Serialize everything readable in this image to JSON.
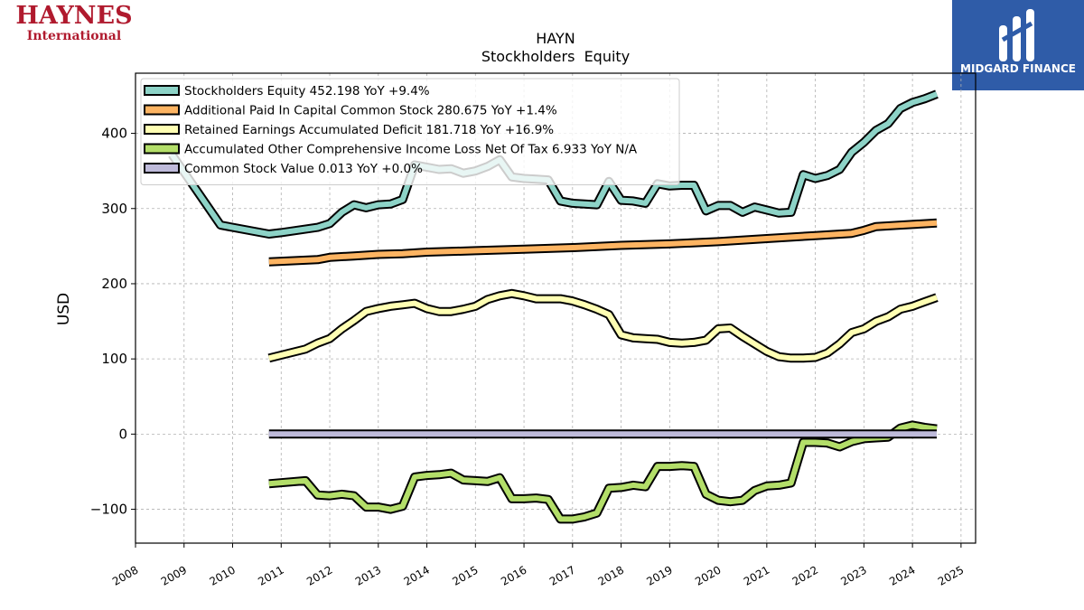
{
  "logos": {
    "left_name": "HAYNES",
    "left_sub": "International",
    "right_brand": "MIDGARD FINANCE"
  },
  "chart_data": {
    "type": "line",
    "title": "HAYN",
    "subtitle": "Stockholders  Equity",
    "ylabel": "USD",
    "xlabel": "",
    "xlim": [
      2008.0,
      2025.3
    ],
    "ylim": [
      -145,
      480
    ],
    "yticks": [
      -100,
      0,
      100,
      200,
      300,
      400
    ],
    "ytick_labels": [
      "−100",
      "0",
      "100",
      "200",
      "300",
      "400"
    ],
    "xticks": [
      2008,
      2009,
      2010,
      2011,
      2012,
      2013,
      2014,
      2015,
      2016,
      2017,
      2018,
      2019,
      2020,
      2021,
      2022,
      2023,
      2024,
      2025
    ],
    "grid": true,
    "legend_position": "top-left",
    "series": [
      {
        "name": "Stockholders Equity  452.198 YoY +9.4%",
        "color": "#8dd3c7",
        "points": [
          [
            2008.75,
            372
          ],
          [
            2009.75,
            278
          ],
          [
            2010.75,
            266
          ],
          [
            2011.0,
            268
          ],
          [
            2011.75,
            275
          ],
          [
            2012.0,
            280
          ],
          [
            2012.25,
            295
          ],
          [
            2012.5,
            305
          ],
          [
            2012.75,
            301
          ],
          [
            2013.0,
            305
          ],
          [
            2013.25,
            306
          ],
          [
            2013.5,
            312
          ],
          [
            2013.75,
            358
          ],
          [
            2014.0,
            355
          ],
          [
            2014.25,
            352
          ],
          [
            2014.5,
            353
          ],
          [
            2014.75,
            347
          ],
          [
            2015.0,
            350
          ],
          [
            2015.25,
            356
          ],
          [
            2015.5,
            365
          ],
          [
            2015.75,
            342
          ],
          [
            2016.0,
            340
          ],
          [
            2016.25,
            339
          ],
          [
            2016.5,
            338
          ],
          [
            2016.75,
            310
          ],
          [
            2017.0,
            307
          ],
          [
            2017.25,
            306
          ],
          [
            2017.5,
            305
          ],
          [
            2017.75,
            336
          ],
          [
            2018.0,
            311
          ],
          [
            2018.25,
            310
          ],
          [
            2018.5,
            307
          ],
          [
            2018.75,
            333
          ],
          [
            2019.0,
            330
          ],
          [
            2019.25,
            331
          ],
          [
            2019.5,
            331
          ],
          [
            2019.75,
            297
          ],
          [
            2020.0,
            304
          ],
          [
            2020.25,
            304
          ],
          [
            2020.5,
            295
          ],
          [
            2020.75,
            302
          ],
          [
            2021.0,
            298
          ],
          [
            2021.25,
            294
          ],
          [
            2021.5,
            295
          ],
          [
            2021.75,
            345
          ],
          [
            2022.0,
            340
          ],
          [
            2022.25,
            344
          ],
          [
            2022.5,
            352
          ],
          [
            2022.75,
            375
          ],
          [
            2023.0,
            388
          ],
          [
            2023.25,
            404
          ],
          [
            2023.5,
            413
          ],
          [
            2023.75,
            433
          ],
          [
            2024.0,
            441
          ],
          [
            2024.25,
            446
          ],
          [
            2024.5,
            452.198
          ]
        ]
      },
      {
        "name": "Additional Paid In Capital Common Stock  280.675 YoY +1.4%",
        "color": "#fdb462",
        "points": [
          [
            2010.75,
            229
          ],
          [
            2011.75,
            232
          ],
          [
            2012.0,
            235
          ],
          [
            2012.5,
            237
          ],
          [
            2013.0,
            239
          ],
          [
            2013.5,
            240
          ],
          [
            2014.0,
            242
          ],
          [
            2015.0,
            244
          ],
          [
            2016.0,
            246
          ],
          [
            2017.0,
            248
          ],
          [
            2018.0,
            251
          ],
          [
            2019.0,
            253
          ],
          [
            2020.0,
            256
          ],
          [
            2021.0,
            260
          ],
          [
            2022.0,
            264
          ],
          [
            2022.75,
            267
          ],
          [
            2023.0,
            271
          ],
          [
            2023.25,
            276
          ],
          [
            2023.75,
            278
          ],
          [
            2024.5,
            280.675
          ]
        ]
      },
      {
        "name": "Retained Earnings Accumulated Deficit  181.718 YoY +16.9%",
        "color": "#ffffb3",
        "points": [
          [
            2010.75,
            101
          ],
          [
            2011.5,
            113
          ],
          [
            2011.75,
            121
          ],
          [
            2012.0,
            127
          ],
          [
            2012.25,
            140
          ],
          [
            2012.5,
            151
          ],
          [
            2012.75,
            163
          ],
          [
            2013.0,
            167
          ],
          [
            2013.25,
            170
          ],
          [
            2013.5,
            172
          ],
          [
            2013.75,
            174
          ],
          [
            2014.0,
            167
          ],
          [
            2014.25,
            163
          ],
          [
            2014.5,
            163
          ],
          [
            2014.75,
            166
          ],
          [
            2015.0,
            170
          ],
          [
            2015.25,
            179
          ],
          [
            2015.5,
            184
          ],
          [
            2015.75,
            187
          ],
          [
            2016.0,
            184
          ],
          [
            2016.25,
            180
          ],
          [
            2016.5,
            180
          ],
          [
            2016.75,
            180
          ],
          [
            2017.0,
            177
          ],
          [
            2017.25,
            172
          ],
          [
            2017.5,
            166
          ],
          [
            2017.75,
            159
          ],
          [
            2018.0,
            132
          ],
          [
            2018.25,
            128
          ],
          [
            2018.5,
            127
          ],
          [
            2018.75,
            126
          ],
          [
            2019.0,
            122
          ],
          [
            2019.25,
            121
          ],
          [
            2019.5,
            122
          ],
          [
            2019.75,
            125
          ],
          [
            2020.0,
            140
          ],
          [
            2020.25,
            141
          ],
          [
            2020.5,
            130
          ],
          [
            2020.75,
            120
          ],
          [
            2021.0,
            110
          ],
          [
            2021.25,
            103
          ],
          [
            2021.5,
            101
          ],
          [
            2021.75,
            101
          ],
          [
            2022.0,
            102
          ],
          [
            2022.25,
            108
          ],
          [
            2022.5,
            120
          ],
          [
            2022.75,
            135
          ],
          [
            2023.0,
            140
          ],
          [
            2023.25,
            150
          ],
          [
            2023.5,
            156
          ],
          [
            2023.75,
            166
          ],
          [
            2024.0,
            170
          ],
          [
            2024.25,
            176
          ],
          [
            2024.5,
            181.718
          ]
        ]
      },
      {
        "name": "Accumulated Other Comprehensive Income Loss Net Of Tax  6.933 YoY N/A",
        "color": "#b3de69",
        "points": [
          [
            2010.75,
            -66
          ],
          [
            2011.5,
            -62
          ],
          [
            2011.75,
            -81
          ],
          [
            2012.0,
            -82
          ],
          [
            2012.25,
            -80
          ],
          [
            2012.5,
            -82
          ],
          [
            2012.75,
            -97
          ],
          [
            2013.0,
            -97
          ],
          [
            2013.25,
            -100
          ],
          [
            2013.5,
            -96
          ],
          [
            2013.75,
            -57
          ],
          [
            2014.0,
            -55
          ],
          [
            2014.25,
            -54
          ],
          [
            2014.5,
            -52
          ],
          [
            2014.75,
            -61
          ],
          [
            2015.0,
            -62
          ],
          [
            2015.25,
            -63
          ],
          [
            2015.5,
            -58
          ],
          [
            2015.75,
            -86
          ],
          [
            2016.0,
            -86
          ],
          [
            2016.25,
            -85
          ],
          [
            2016.5,
            -87
          ],
          [
            2016.75,
            -113
          ],
          [
            2017.0,
            -113
          ],
          [
            2017.25,
            -110
          ],
          [
            2017.5,
            -105
          ],
          [
            2017.75,
            -72
          ],
          [
            2018.0,
            -71
          ],
          [
            2018.25,
            -68
          ],
          [
            2018.5,
            -70
          ],
          [
            2018.75,
            -43
          ],
          [
            2019.0,
            -43
          ],
          [
            2019.25,
            -42
          ],
          [
            2019.5,
            -43
          ],
          [
            2019.75,
            -80
          ],
          [
            2020.0,
            -88
          ],
          [
            2020.25,
            -90
          ],
          [
            2020.5,
            -88
          ],
          [
            2020.75,
            -75
          ],
          [
            2021.0,
            -69
          ],
          [
            2021.25,
            -68
          ],
          [
            2021.5,
            -65
          ],
          [
            2021.75,
            -11
          ],
          [
            2022.0,
            -11
          ],
          [
            2022.25,
            -12
          ],
          [
            2022.5,
            -17
          ],
          [
            2022.75,
            -10
          ],
          [
            2023.0,
            -6
          ],
          [
            2023.25,
            -5
          ],
          [
            2023.5,
            -4
          ],
          [
            2023.75,
            8
          ],
          [
            2024.0,
            12
          ],
          [
            2024.25,
            9
          ],
          [
            2024.5,
            6.933
          ]
        ]
      },
      {
        "name": "Common Stock Value  0.013 YoY +0.0%",
        "color": "#bebada",
        "points": [
          [
            2010.75,
            0.013
          ],
          [
            2024.5,
            0.013
          ]
        ]
      }
    ]
  }
}
